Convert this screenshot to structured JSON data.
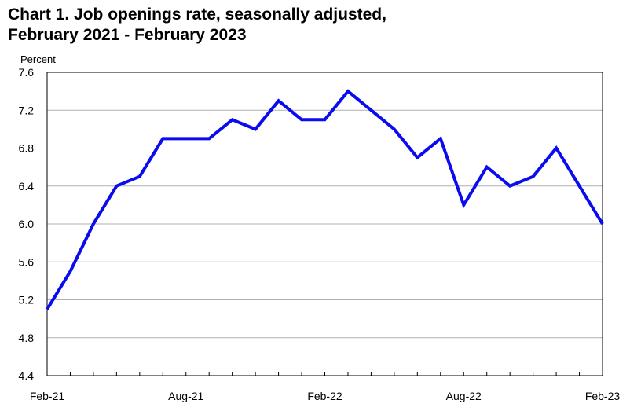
{
  "title": {
    "line1": "Chart 1. Job openings rate, seasonally adjusted,",
    "line2": "February 2021 - February 2023"
  },
  "colors": {
    "series": "#0b0bf0",
    "gridline": "#b0b0b0",
    "axis": "#000000"
  },
  "chart_data": {
    "type": "line",
    "title": "Chart 1. Job openings rate, seasonally adjusted, February 2021 - February 2023",
    "ylabel": "Percent",
    "xlabel": "",
    "ylim": [
      4.4,
      7.6
    ],
    "yticks": [
      "4.4",
      "4.8",
      "5.2",
      "5.6",
      "6.0",
      "6.4",
      "6.8",
      "7.2",
      "7.6"
    ],
    "xtick_labels": [
      {
        "index": 0,
        "label": "Feb-21"
      },
      {
        "index": 6,
        "label": "Aug-21"
      },
      {
        "index": 12,
        "label": "Feb-22"
      },
      {
        "index": 18,
        "label": "Aug-22"
      },
      {
        "index": 24,
        "label": "Feb-23"
      }
    ],
    "grid": true,
    "legend": "none",
    "series": [
      {
        "x": [
          "Feb-21",
          "Mar-21",
          "Apr-21",
          "May-21",
          "Jun-21",
          "Jul-21",
          "Aug-21",
          "Sep-21",
          "Oct-21",
          "Nov-21",
          "Dec-21",
          "Jan-22",
          "Feb-22",
          "Mar-22",
          "Apr-22",
          "May-22",
          "Jun-22",
          "Jul-22",
          "Aug-22",
          "Sep-22",
          "Oct-22",
          "Nov-22",
          "Dec-22",
          "Jan-23",
          "Feb-23"
        ],
        "values": [
          5.1,
          5.5,
          6.0,
          6.4,
          6.5,
          6.9,
          6.9,
          6.9,
          7.1,
          7.0,
          7.3,
          7.1,
          7.1,
          7.4,
          7.2,
          7.0,
          6.7,
          6.9,
          6.2,
          6.6,
          6.4,
          6.5,
          6.8,
          6.4,
          6.0
        ]
      }
    ]
  }
}
